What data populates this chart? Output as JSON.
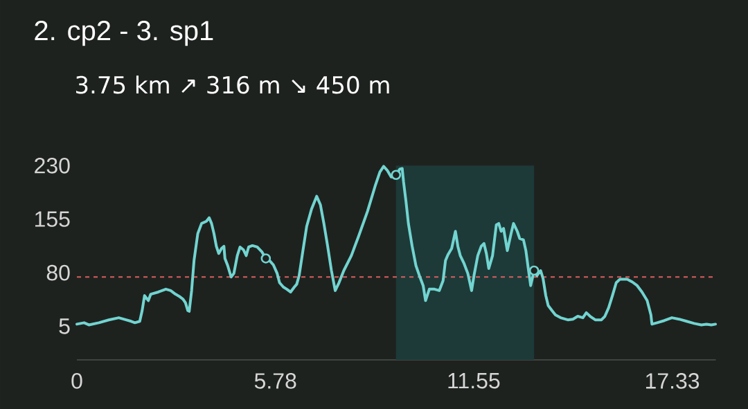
{
  "chart_data": {
    "type": "line",
    "title": "2. cp2 - 3. sp1",
    "subtitle": "3.75 km ↗ 316 m ↘ 450 m",
    "xlim": [
      0,
      18.6
    ],
    "ylim": [
      -42,
      230
    ],
    "xticks": [
      0,
      5.78,
      11.55,
      17.33
    ],
    "yticks": [
      5,
      80,
      155,
      230
    ],
    "series": [
      {
        "color": "#72d4d0",
        "x": [
          0.0,
          0.21,
          0.35,
          0.64,
          0.93,
          1.22,
          1.36,
          1.58,
          1.69,
          1.83,
          1.9,
          1.97,
          2.08,
          2.15,
          2.37,
          2.59,
          2.73,
          2.87,
          2.98,
          3.09,
          3.16,
          3.23,
          3.27,
          3.34,
          3.41,
          3.52,
          3.63,
          3.77,
          3.85,
          3.92,
          3.99,
          4.06,
          4.13,
          4.21,
          4.28,
          4.31,
          4.39,
          4.49,
          4.57,
          4.67,
          4.75,
          4.85,
          4.93,
          5.0,
          5.11,
          5.25,
          5.39,
          5.5,
          5.61,
          5.72,
          5.83,
          5.9,
          6.01,
          6.11,
          6.22,
          6.33,
          6.4,
          6.47,
          6.58,
          6.69,
          6.83,
          6.98,
          7.09,
          7.19,
          7.3,
          7.41,
          7.52,
          7.63,
          7.77,
          7.99,
          8.2,
          8.46,
          8.68,
          8.82,
          8.93,
          9.04,
          9.15,
          9.29,
          9.4,
          9.47,
          9.51,
          9.58,
          9.65,
          9.76,
          9.87,
          9.97,
          10.08,
          10.15,
          10.26,
          10.41,
          10.55,
          10.66,
          10.73,
          10.8,
          10.91,
          11.02,
          11.09,
          11.16,
          11.27,
          11.38,
          11.49,
          11.56,
          11.67,
          11.77,
          11.85,
          11.92,
          11.99,
          12.1,
          12.21,
          12.28,
          12.35,
          12.42,
          12.53,
          12.64,
          12.71,
          12.82,
          12.89,
          13.0,
          13.07,
          13.14,
          13.21,
          13.31,
          13.39,
          13.5,
          13.57,
          13.65,
          13.72,
          13.83,
          13.93,
          14.08,
          14.29,
          14.44,
          14.58,
          14.73,
          14.83,
          14.94,
          15.09,
          15.27,
          15.37,
          15.48,
          15.59,
          15.7,
          15.81,
          16.02,
          16.17,
          16.31,
          16.45,
          16.6,
          16.71,
          16.74,
          16.89,
          17.1,
          17.32,
          17.53,
          17.75,
          17.97,
          18.18,
          18.33,
          18.47,
          18.59
        ],
        "values": [
          8,
          10,
          7,
          10,
          14,
          17,
          15,
          12,
          10,
          12,
          27,
          48,
          41,
          50,
          53,
          57,
          55,
          50,
          47,
          43,
          38,
          27,
          26,
          55,
          97,
          135,
          149,
          152,
          157,
          149,
          135,
          117,
          107,
          114,
          117,
          100,
          90,
          74,
          79,
          104,
          116,
          112,
          104,
          116,
          118,
          116,
          109,
          100,
          97,
          91,
          79,
          66,
          60,
          57,
          53,
          60,
          64,
          76,
          111,
          145,
          169,
          187,
          175,
          149,
          117,
          83,
          55,
          66,
          83,
          104,
          131,
          166,
          201,
          221,
          229,
          223,
          214,
          217,
          225,
          226,
          207,
          180,
          149,
          117,
          90,
          76,
          62,
          41,
          57,
          57,
          55,
          69,
          97,
          105,
          114,
          138,
          117,
          104,
          93,
          79,
          55,
          76,
          104,
          117,
          121,
          107,
          86,
          104,
          147,
          149,
          138,
          142,
          111,
          135,
          149,
          138,
          128,
          126,
          111,
          86,
          62,
          83,
          76,
          83,
          72,
          48,
          34,
          27,
          21,
          17,
          14,
          15,
          19,
          17,
          24,
          19,
          14,
          14,
          19,
          31,
          48,
          66,
          71,
          71,
          67,
          62,
          53,
          41,
          21,
          8,
          10,
          13,
          17,
          15,
          12,
          9,
          7,
          8,
          7,
          8
        ]
      },
      {
        "type": "scatter",
        "color": "#72d4d0",
        "marker": "circle",
        "x": [
          5.5,
          9.29,
          13.31
        ],
        "values": [
          100,
          217,
          83
        ]
      }
    ],
    "ref_lines": [
      {
        "axis": "y",
        "value": 74,
        "color": "#d95f5f",
        "line_style": "dashed"
      }
    ],
    "bands": [
      {
        "axis": "x",
        "from": 9.29,
        "to": 13.31,
        "color": "#1d3a38"
      }
    ]
  }
}
